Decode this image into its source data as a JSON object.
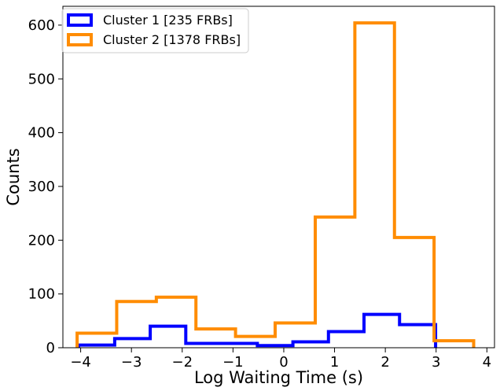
{
  "chart_data": {
    "type": "histogram",
    "xlabel": "Log Waiting Time (s)",
    "ylabel": "Counts",
    "xlim": [
      -4.35,
      4.15
    ],
    "ylim": [
      0,
      635
    ],
    "xticks": [
      -4,
      -3,
      -2,
      -1,
      0,
      1,
      2,
      3,
      4
    ],
    "xtick_labels": [
      "−4",
      "−3",
      "−2",
      "−1",
      "0",
      "1",
      "2",
      "3",
      "4"
    ],
    "yticks": [
      0,
      100,
      200,
      300,
      400,
      500,
      600
    ],
    "ytick_labels": [
      "0",
      "100",
      "200",
      "300",
      "400",
      "500",
      "600"
    ],
    "grid": false,
    "legend_position": "top-left",
    "series": [
      {
        "name": "Cluster 1 [235 FRBs]",
        "color": "#0000ff",
        "bin_edges": [
          -4.04,
          -3.33,
          -2.63,
          -1.93,
          -1.22,
          -0.52,
          0.18,
          0.88,
          1.58,
          2.28,
          2.99
        ],
        "counts": [
          5,
          17,
          40,
          8,
          8,
          4,
          11,
          30,
          62,
          43
        ]
      },
      {
        "name": "Cluster 2 [1378 FRBs]",
        "color": "#ff8c00",
        "bin_edges": [
          -4.07,
          -3.29,
          -2.51,
          -1.73,
          -0.95,
          -0.17,
          0.62,
          1.4,
          2.18,
          2.96,
          3.74
        ],
        "counts": [
          27,
          86,
          94,
          35,
          21,
          46,
          243,
          604,
          205,
          13
        ]
      }
    ]
  }
}
